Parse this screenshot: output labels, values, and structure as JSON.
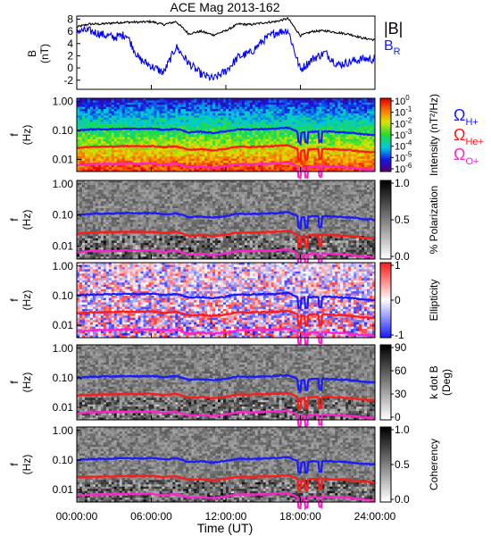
{
  "figure": {
    "title": "ACE Mag 2013-162",
    "xlabel": "Time (UT)",
    "xticks": [
      "00:00:00",
      "06:00:00",
      "12:00:00",
      "18:00:00",
      "24:00:00"
    ]
  },
  "chart_data": [
    {
      "type": "line",
      "panel": "magnetic-field",
      "ylabel_main": "B",
      "ylabel_unit": "(nT)",
      "ylim": [
        -3.5,
        8.5
      ],
      "yticks": [
        "8",
        "6",
        "4",
        "2",
        "0",
        "-2"
      ],
      "x_hours": [
        0,
        1,
        2,
        3,
        4,
        5,
        6,
        7,
        8,
        9,
        10,
        11,
        12,
        13,
        14,
        15,
        16,
        17,
        18,
        19,
        20,
        21,
        22,
        23,
        24
      ],
      "series": [
        {
          "name": "|B|",
          "color": "#000000",
          "values": [
            6.7,
            7.2,
            7.2,
            7.4,
            7.5,
            7.5,
            7.6,
            7.1,
            7.6,
            5.6,
            6.0,
            5.4,
            6.1,
            7.2,
            7.1,
            7.4,
            7.6,
            8.1,
            5.3,
            6.0,
            6.1,
            5.8,
            5.5,
            4.9,
            4.6
          ]
        },
        {
          "name": "B_R",
          "color": "#0000ff",
          "values": [
            6.1,
            6.1,
            5.5,
            5.0,
            5.5,
            1.5,
            0.3,
            -0.8,
            3.5,
            0.8,
            -1.0,
            -1.8,
            -0.5,
            1.8,
            2.5,
            4.5,
            5.8,
            6.2,
            -0.3,
            1.5,
            2.5,
            0.5,
            1.0,
            1.5,
            1.4
          ]
        }
      ],
      "legend": {
        "B_main": "B",
        "B_sub": "R"
      }
    },
    {
      "type": "heatmap",
      "panel": "intensity",
      "ylabel_main": "f",
      "ylabel_unit": "(Hz)",
      "yscale": "log",
      "ylim": [
        0.0038,
        1.3
      ],
      "yticks": [
        "1.00",
        "0.10",
        "0.01"
      ],
      "colorbar_ticks": [
        "10^0",
        "10^-1",
        "10^-2",
        "10^-3",
        "10^-4",
        "10^-5",
        "10^-6"
      ],
      "colorbar_label": "Intensity (nT²/Hz)",
      "colorscale": "rainbow"
    },
    {
      "type": "heatmap",
      "panel": "polarization",
      "ylabel_main": "f",
      "ylabel_unit": "(Hz)",
      "yscale": "log",
      "ylim": [
        0.0038,
        1.3
      ],
      "yticks": [
        "1.00",
        "0.10",
        "0.01"
      ],
      "colorbar_ticks": [
        "1.0",
        "0.5",
        "0.0"
      ],
      "colorbar_label": "% Polarization",
      "colorscale": "gray"
    },
    {
      "type": "heatmap",
      "panel": "ellipticity",
      "ylabel_main": "f",
      "ylabel_unit": "(Hz)",
      "yscale": "log",
      "ylim": [
        0.0038,
        1.3
      ],
      "yticks": [
        "1.00",
        "0.10",
        "0.01"
      ],
      "colorbar_ticks": [
        "1",
        "0",
        "-1"
      ],
      "colorbar_label": "Ellipticity",
      "colorscale": "blue-white-red"
    },
    {
      "type": "heatmap",
      "panel": "k-dot-b",
      "ylabel_main": "f",
      "ylabel_unit": "(Hz)",
      "yscale": "log",
      "ylim": [
        0.0038,
        1.3
      ],
      "yticks": [
        "1.00",
        "0.10",
        "0.01"
      ],
      "colorbar_ticks": [
        "90",
        "60",
        "30",
        "0"
      ],
      "colorbar_label_1": "k dot B",
      "colorbar_label_2": "(Deg)",
      "colorscale": "gray"
    },
    {
      "type": "heatmap",
      "panel": "coherency",
      "ylabel_main": "f",
      "ylabel_unit": "(Hz)",
      "yscale": "log",
      "ylim": [
        0.0038,
        1.3
      ],
      "yticks": [
        "1.00",
        "0.10",
        "0.01"
      ],
      "colorbar_ticks": [
        "1.0",
        "0.5",
        "0.0"
      ],
      "colorbar_label": "Coherency",
      "colorscale": "gray"
    }
  ],
  "gyrofrequencies": {
    "x_hours": [
      0,
      1,
      2,
      3,
      4,
      5,
      6,
      7,
      8,
      9,
      10,
      11,
      12,
      13,
      14,
      15,
      16,
      17,
      18,
      19,
      20,
      21,
      22,
      23,
      24
    ],
    "series": [
      {
        "name": "H+",
        "color": "#1a1aff",
        "values": [
          0.1,
          0.108,
          0.11,
          0.112,
          0.115,
          0.113,
          0.116,
          0.105,
          0.114,
          0.085,
          0.09,
          0.082,
          0.093,
          0.11,
          0.108,
          0.112,
          0.115,
          0.124,
          0.081,
          0.091,
          0.092,
          0.088,
          0.084,
          0.074,
          0.07
        ]
      },
      {
        "name": "He+",
        "color": "#ff1a1a",
        "values": [
          0.025,
          0.027,
          0.0275,
          0.028,
          0.0288,
          0.0283,
          0.029,
          0.0262,
          0.0285,
          0.0212,
          0.0225,
          0.0205,
          0.0232,
          0.0275,
          0.027,
          0.028,
          0.0288,
          0.031,
          0.0202,
          0.0228,
          0.023,
          0.022,
          0.021,
          0.0185,
          0.0175
        ]
      },
      {
        "name": "O+",
        "color": "#ff22cc",
        "values": [
          0.00625,
          0.00675,
          0.0069,
          0.007,
          0.0072,
          0.0071,
          0.00725,
          0.00655,
          0.0071,
          0.0053,
          0.0056,
          0.0051,
          0.0058,
          0.0069,
          0.00675,
          0.007,
          0.0072,
          0.00775,
          0.00505,
          0.0057,
          0.00575,
          0.0055,
          0.00525,
          0.00462,
          0.00437
        ]
      }
    ],
    "dip_hours": [
      17.9,
      18.5,
      19.6
    ],
    "legend_symbol": "Ω"
  }
}
